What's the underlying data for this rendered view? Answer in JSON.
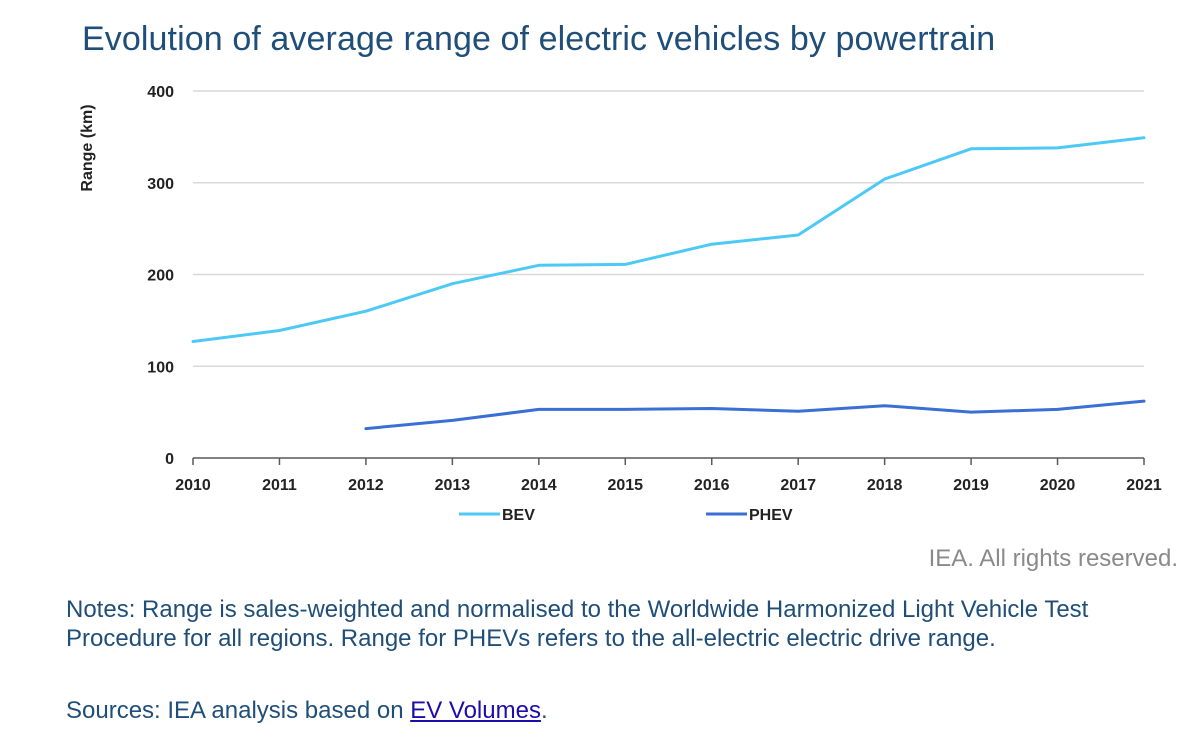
{
  "title": "Evolution of average range of electric vehicles by powertrain",
  "copyright": "IEA. All rights reserved.",
  "notes": "Notes: Range is sales-weighted and normalised to the Worldwide Harmonized Light Vehicle Test Procedure for all regions. Range for PHEVs refers to the all-electric electric drive range.",
  "sources": {
    "prefix": "Sources: IEA analysis based on ",
    "link": "EV Volumes",
    "suffix": "."
  },
  "colors": {
    "bev": "#4dc9f6",
    "phev": "#3a6fd4",
    "grid": "#d9d9d9",
    "axis": "#595959"
  },
  "chart_data": {
    "type": "line",
    "title": "Evolution of average range of electric vehicles by powertrain",
    "xlabel": "",
    "ylabel": "Range (km)",
    "ylim": [
      0,
      400
    ],
    "yticks": [
      0,
      100,
      200,
      300,
      400
    ],
    "x": [
      "2010",
      "2011",
      "2012",
      "2013",
      "2014",
      "2015",
      "2016",
      "2017",
      "2018",
      "2019",
      "2020",
      "2021"
    ],
    "grid": true,
    "legend": "bottom",
    "series": [
      {
        "name": "BEV",
        "values": [
          127,
          139,
          160,
          190,
          210,
          211,
          233,
          243,
          304,
          337,
          338,
          349
        ]
      },
      {
        "name": "PHEV",
        "values": [
          null,
          null,
          32,
          41,
          53,
          53,
          54,
          51,
          57,
          50,
          53,
          62
        ]
      }
    ]
  }
}
